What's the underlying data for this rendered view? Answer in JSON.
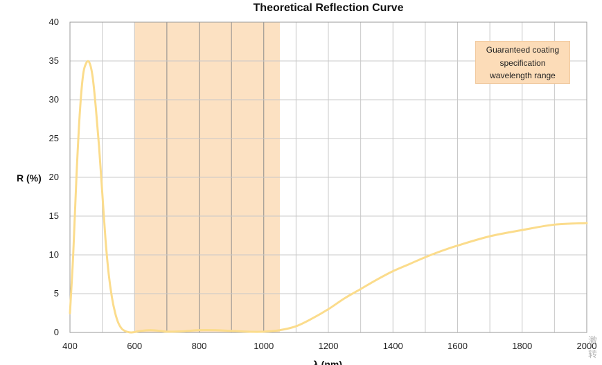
{
  "chart_data": {
    "type": "line",
    "title": "Theoretical Reflection Curve",
    "xlabel": "λ (nm)",
    "ylabel": "R (%)",
    "xlim": [
      400,
      2000
    ],
    "ylim": [
      0,
      40
    ],
    "x_ticks": [
      400,
      600,
      800,
      1000,
      1200,
      1400,
      1600,
      1800,
      2000
    ],
    "y_ticks": [
      0,
      5,
      10,
      15,
      20,
      25,
      30,
      35,
      40
    ],
    "grid": true,
    "highlight_band": {
      "x_start": 600,
      "x_end": 1050,
      "color": "#fce1c2",
      "label_lines": [
        "Guaranteed coating",
        "specification",
        "wavelength range"
      ],
      "label_position": "top-right"
    },
    "series": [
      {
        "color": "#fbdc8c",
        "x": [
          400,
          410,
          420,
          430,
          440,
          450,
          460,
          470,
          480,
          490,
          500,
          510,
          520,
          530,
          540,
          550,
          560,
          570,
          580,
          590,
          600,
          620,
          650,
          680,
          700,
          750,
          800,
          850,
          900,
          950,
          1000,
          1050,
          1100,
          1150,
          1200,
          1250,
          1300,
          1350,
          1400,
          1450,
          1500,
          1550,
          1600,
          1700,
          1800,
          1900,
          2000
        ],
        "y": [
          2.5,
          10,
          20,
          28,
          33,
          34.7,
          34.8,
          33,
          29,
          24,
          18,
          12,
          7.5,
          4.5,
          2.5,
          1.2,
          0.5,
          0.2,
          0.05,
          0,
          0.05,
          0.2,
          0.3,
          0.2,
          0.1,
          0.15,
          0.3,
          0.3,
          0.2,
          0.1,
          0.1,
          0.3,
          0.8,
          1.8,
          3.0,
          4.4,
          5.6,
          6.8,
          7.9,
          8.8,
          9.7,
          10.5,
          11.2,
          12.4,
          13.2,
          13.9,
          14.1
        ]
      }
    ]
  },
  "watermark": {
    "glyph_lines": [
      "激",
      "转"
    ]
  }
}
